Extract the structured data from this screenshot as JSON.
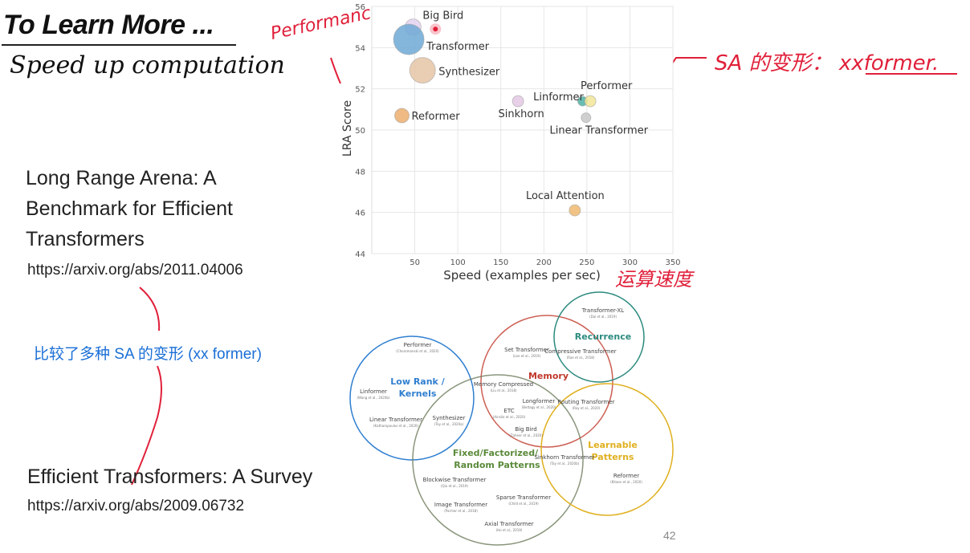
{
  "slide": {
    "title": "To Learn More ...",
    "subtitle": "Speed up computation",
    "page_number": "42"
  },
  "papers": [
    {
      "title": "Long Range Arena: A Benchmark for Efficient Transformers",
      "link": "https://arxiv.org/abs/2011.04006"
    },
    {
      "title": "Efficient Transformers: A Survey",
      "link": "https://arxiv.org/abs/2009.06732"
    }
  ],
  "note": "比较了多种 SA 的变形 (xx former)",
  "handwriting": {
    "performance": "Performance",
    "sa_variants": "SA 的变形： xxformer.",
    "speed": "运算速度"
  },
  "colors": {
    "annotation_red": "#e0203a",
    "note_blue": "#1a6fd6"
  },
  "chart_data": {
    "type": "scatter",
    "xlabel": "Speed (examples per sec)",
    "ylabel": "LRA Score",
    "xlim": [
      0,
      350
    ],
    "ylim": [
      44,
      56
    ],
    "xticks": [
      50,
      100,
      150,
      200,
      250,
      300,
      350
    ],
    "yticks": [
      44,
      46,
      48,
      50,
      52,
      54,
      56
    ],
    "grid": true,
    "points": [
      {
        "label": "Big Bird",
        "x": 48,
        "y": 55.0,
        "size": 10,
        "color": "#e3d2ef"
      },
      {
        "label": "Transformer",
        "x": 43,
        "y": 54.4,
        "size": 19,
        "color": "#6ea9d6"
      },
      {
        "label": "Synthesizer",
        "x": 59,
        "y": 52.9,
        "size": 16,
        "color": "#e6c6a6"
      },
      {
        "label": "Reformer",
        "x": 35,
        "y": 50.7,
        "size": 9,
        "color": "#ecae6e"
      },
      {
        "label": "Sinkhorn",
        "x": 170,
        "y": 51.4,
        "size": 7,
        "color": "#e3c8e4"
      },
      {
        "label": "Linformer",
        "x": 245,
        "y": 51.4,
        "size": 6,
        "color": "#4fb0a4"
      },
      {
        "label": "Performer",
        "x": 254,
        "y": 51.4,
        "size": 7,
        "color": "#f2e596"
      },
      {
        "label": "Linear Transformer",
        "x": 249,
        "y": 50.6,
        "size": 6,
        "color": "#c8c8c8"
      },
      {
        "label": "Local Attention",
        "x": 236,
        "y": 46.1,
        "size": 7,
        "color": "#eeba70"
      }
    ],
    "highlight": {
      "label": "Big Bird",
      "x": 74,
      "y": 54.9
    }
  },
  "venn": {
    "groups": [
      {
        "name": "Low Rank / Kernels",
        "color": "#2f7fd0",
        "label_color": "#2f7fd0"
      },
      {
        "name": "Memory",
        "color": "#c0392b",
        "label_color": "#c0392b"
      },
      {
        "name": "Recurrence",
        "color": "#2b8a7e",
        "label_color": "#2b8a7e"
      },
      {
        "name": "Fixed/Factorized/ Random Patterns",
        "color": "#5a8a3a",
        "label_color": "#5a8a3a"
      },
      {
        "name": "Learnable Patterns",
        "color": "#e0b020",
        "label_color": "#e0b020"
      }
    ],
    "items": [
      {
        "name": "Transformer-XL",
        "cite": "(Dai et al., 2019)"
      },
      {
        "name": "Performer",
        "cite": "(Choromanski et al., 2020)"
      },
      {
        "name": "Set Transformer",
        "cite": "(Lee et al., 2019)"
      },
      {
        "name": "Compressive Transformer",
        "cite": "(Rae et al., 2018)"
      },
      {
        "name": "Linformer",
        "cite": "(Wang et al., 2020b)"
      },
      {
        "name": "Memory Compressed",
        "cite": "(Liu et al., 2018)"
      },
      {
        "name": "Longformer",
        "cite": "(Beltagy et al., 2020)"
      },
      {
        "name": "ETC",
        "cite": "(Ainslie et al., 2020)"
      },
      {
        "name": "Routing Transformer",
        "cite": "(Roy et al., 2020)"
      },
      {
        "name": "Linear Transformer",
        "cite": "(Katharopoulos et al., 2020)"
      },
      {
        "name": "Synthesizer",
        "cite": "(Tay et al., 2020a)"
      },
      {
        "name": "Big Bird",
        "cite": "(Zaheer et al., 2020)"
      },
      {
        "name": "Sinkhorn Transformer",
        "cite": "(Tay et al., 2020b)"
      },
      {
        "name": "Blockwise Transformer",
        "cite": "(Qiu et al., 2019)"
      },
      {
        "name": "Reformer",
        "cite": "(Kitaev et al., 2020)"
      },
      {
        "name": "Image Transformer",
        "cite": "(Parmar et al., 2018)"
      },
      {
        "name": "Sparse Transformer",
        "cite": "(Child et al., 2019)"
      },
      {
        "name": "Axial Transformer",
        "cite": "(Ho et al., 2019)"
      }
    ]
  }
}
